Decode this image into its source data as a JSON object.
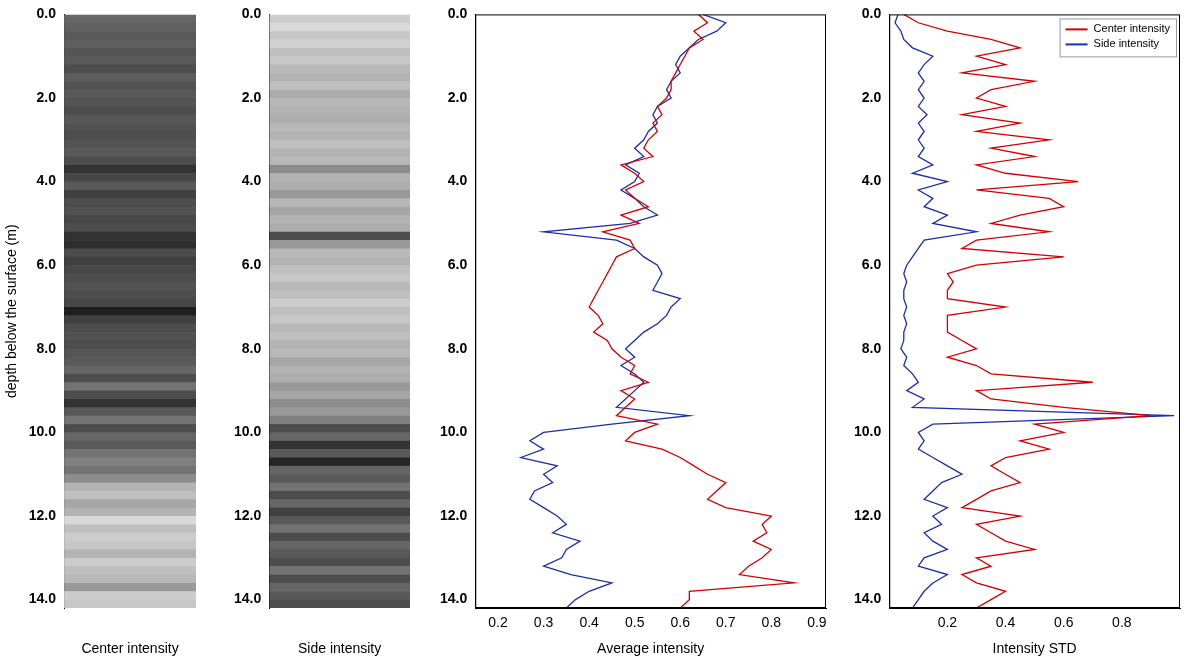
{
  "chart_data": [
    {
      "type": "heatmap",
      "x_label": "Center intensity",
      "y_label": "depth below the surface (m)",
      "tick_labels": "y",
      "grid": false,
      "ylim": [
        0,
        14.2
      ],
      "yticks": [
        {
          "value": 0,
          "label": "0.0"
        },
        {
          "value": 2,
          "label": "2.0"
        },
        {
          "value": 4,
          "label": "4.0"
        },
        {
          "value": 6,
          "label": "6.0"
        },
        {
          "value": 8,
          "label": "8.0"
        },
        {
          "value": 10,
          "label": "10.0"
        },
        {
          "value": 12,
          "label": "12.0"
        },
        {
          "value": 14,
          "label": "14.0"
        }
      ],
      "y": [
        0,
        0.2,
        0.4,
        0.6,
        0.8,
        1,
        1.2,
        1.4,
        1.6,
        1.8,
        2,
        2.2,
        2.4,
        2.6,
        2.8,
        3,
        3.2,
        3.4,
        3.6,
        3.8,
        4,
        4.2,
        4.4,
        4.6,
        4.8,
        5,
        5.2,
        5.4,
        5.6,
        5.8,
        6,
        6.2,
        6.4,
        6.6,
        6.8,
        7,
        7.2,
        7.4,
        7.6,
        7.8,
        8,
        8.2,
        8.4,
        8.6,
        8.8,
        9,
        9.2,
        9.4,
        9.6,
        9.8,
        10,
        10.2,
        10.4,
        10.6,
        10.8,
        11,
        11.2,
        11.4,
        11.6,
        11.8,
        12,
        12.2,
        12.4,
        12.6,
        12.8,
        13,
        13.2,
        13.4,
        13.6,
        13.8,
        14
      ],
      "values": [
        0.4,
        0.38,
        0.35,
        0.37,
        0.33,
        0.35,
        0.3,
        0.36,
        0.32,
        0.35,
        0.33,
        0.3,
        0.34,
        0.32,
        0.3,
        0.33,
        0.35,
        0.3,
        0.2,
        0.28,
        0.35,
        0.25,
        0.3,
        0.32,
        0.28,
        0.3,
        0.2,
        0.18,
        0.3,
        0.25,
        0.28,
        0.3,
        0.32,
        0.3,
        0.28,
        0.12,
        0.25,
        0.3,
        0.32,
        0.3,
        0.33,
        0.35,
        0.4,
        0.3,
        0.45,
        0.3,
        0.2,
        0.35,
        0.45,
        0.3,
        0.4,
        0.35,
        0.45,
        0.5,
        0.45,
        0.55,
        0.7,
        0.75,
        0.65,
        0.7,
        0.85,
        0.75,
        0.8,
        0.78,
        0.7,
        0.8,
        0.75,
        0.72,
        0.6,
        0.8,
        0.78
      ]
    },
    {
      "type": "heatmap",
      "x_label": "Side intensity",
      "tick_labels": "y",
      "grid": false,
      "ylim": [
        0,
        14.2
      ],
      "yticks": [
        {
          "value": 0,
          "label": "0.0"
        },
        {
          "value": 2,
          "label": "2.0"
        },
        {
          "value": 4,
          "label": "4.0"
        },
        {
          "value": 6,
          "label": "6.0"
        },
        {
          "value": 8,
          "label": "8.0"
        },
        {
          "value": 10,
          "label": "10.0"
        },
        {
          "value": 12,
          "label": "12.0"
        },
        {
          "value": 14,
          "label": "14.0"
        }
      ],
      "y": [
        0,
        0.2,
        0.4,
        0.6,
        0.8,
        1,
        1.2,
        1.4,
        1.6,
        1.8,
        2,
        2.2,
        2.4,
        2.6,
        2.8,
        3,
        3.2,
        3.4,
        3.6,
        3.8,
        4,
        4.2,
        4.4,
        4.6,
        4.8,
        5,
        5.2,
        5.4,
        5.6,
        5.8,
        6,
        6.2,
        6.4,
        6.6,
        6.8,
        7,
        7.2,
        7.4,
        7.6,
        7.8,
        8,
        8.2,
        8.4,
        8.6,
        8.8,
        9,
        9.2,
        9.4,
        9.6,
        9.8,
        10,
        10.2,
        10.4,
        10.6,
        10.8,
        11,
        11.2,
        11.4,
        11.6,
        11.8,
        12,
        12.2,
        12.4,
        12.6,
        12.8,
        13,
        13.2,
        13.4,
        13.6,
        13.8,
        14
      ],
      "values": [
        0.8,
        0.85,
        0.78,
        0.82,
        0.75,
        0.78,
        0.72,
        0.7,
        0.75,
        0.68,
        0.72,
        0.7,
        0.68,
        0.72,
        0.7,
        0.75,
        0.7,
        0.72,
        0.55,
        0.7,
        0.68,
        0.6,
        0.72,
        0.65,
        0.7,
        0.68,
        0.3,
        0.6,
        0.72,
        0.7,
        0.75,
        0.78,
        0.72,
        0.75,
        0.8,
        0.75,
        0.78,
        0.72,
        0.75,
        0.7,
        0.72,
        0.65,
        0.7,
        0.68,
        0.6,
        0.65,
        0.55,
        0.6,
        0.5,
        0.3,
        0.4,
        0.2,
        0.35,
        0.15,
        0.4,
        0.35,
        0.45,
        0.3,
        0.4,
        0.25,
        0.35,
        0.45,
        0.3,
        0.4,
        0.35,
        0.3,
        0.45,
        0.3,
        0.4,
        0.35,
        0.3
      ]
    },
    {
      "type": "line",
      "x_label": "Average intensity",
      "grid": false,
      "xlim": [
        0.15,
        0.92
      ],
      "xticks": [
        0.2,
        0.3,
        0.4,
        0.5,
        0.6,
        0.7,
        0.8,
        0.9
      ],
      "ylim": [
        0,
        14.2
      ],
      "yticks": [
        {
          "value": 0,
          "label": "0.0"
        },
        {
          "value": 2,
          "label": "2.0"
        },
        {
          "value": 4,
          "label": "4.0"
        },
        {
          "value": 6,
          "label": "6.0"
        },
        {
          "value": 8,
          "label": "8.0"
        },
        {
          "value": 10,
          "label": "10.0"
        },
        {
          "value": 12,
          "label": "12.0"
        },
        {
          "value": 14,
          "label": "14.0"
        }
      ],
      "y": [
        0,
        0.2,
        0.4,
        0.6,
        0.8,
        1,
        1.2,
        1.4,
        1.6,
        1.8,
        2,
        2.2,
        2.4,
        2.6,
        2.8,
        3,
        3.2,
        3.4,
        3.6,
        3.8,
        4,
        4.2,
        4.4,
        4.6,
        4.8,
        5,
        5.2,
        5.4,
        5.6,
        5.8,
        6,
        6.2,
        6.4,
        6.6,
        6.8,
        7,
        7.2,
        7.4,
        7.6,
        7.8,
        8,
        8.2,
        8.4,
        8.6,
        8.8,
        9,
        9.2,
        9.4,
        9.6,
        9.8,
        10,
        10.2,
        10.4,
        10.6,
        10.8,
        11,
        11.2,
        11.4,
        11.6,
        11.8,
        12,
        12.2,
        12.4,
        12.6,
        12.8,
        13,
        13.2,
        13.4,
        13.6,
        13.8,
        14,
        14.2
      ],
      "series": [
        {
          "color": "#d40000",
          "values": [
            0.64,
            0.66,
            0.63,
            0.65,
            0.62,
            0.61,
            0.6,
            0.59,
            0.58,
            0.58,
            0.57,
            0.55,
            0.56,
            0.54,
            0.55,
            0.53,
            0.52,
            0.54,
            0.47,
            0.5,
            0.52,
            0.48,
            0.5,
            0.53,
            0.47,
            0.51,
            0.43,
            0.49,
            0.5,
            0.46,
            0.45,
            0.44,
            0.43,
            0.42,
            0.41,
            0.4,
            0.42,
            0.43,
            0.41,
            0.44,
            0.45,
            0.47,
            0.5,
            0.49,
            0.53,
            0.47,
            0.5,
            0.48,
            0.46,
            0.55,
            0.5,
            0.48,
            0.56,
            0.6,
            0.63,
            0.66,
            0.7,
            0.68,
            0.66,
            0.7,
            0.8,
            0.78,
            0.79,
            0.76,
            0.8,
            0.78,
            0.75,
            0.73,
            0.85,
            0.62,
            0.62,
            0.6
          ]
        },
        {
          "color": "#1a2fa8",
          "values": [
            0.65,
            0.7,
            0.68,
            0.64,
            0.62,
            0.6,
            0.59,
            0.6,
            0.58,
            0.57,
            0.58,
            0.55,
            0.54,
            0.55,
            0.53,
            0.52,
            0.5,
            0.52,
            0.48,
            0.51,
            0.5,
            0.47,
            0.5,
            0.52,
            0.55,
            0.49,
            0.3,
            0.46,
            0.5,
            0.52,
            0.55,
            0.56,
            0.55,
            0.54,
            0.6,
            0.58,
            0.57,
            0.55,
            0.52,
            0.5,
            0.48,
            0.5,
            0.47,
            0.5,
            0.52,
            0.5,
            0.48,
            0.46,
            0.62,
            0.45,
            0.3,
            0.27,
            0.3,
            0.25,
            0.33,
            0.3,
            0.32,
            0.28,
            0.27,
            0.3,
            0.33,
            0.35,
            0.32,
            0.38,
            0.35,
            0.34,
            0.3,
            0.36,
            0.45,
            0.4,
            0.37,
            0.35
          ]
        }
      ]
    },
    {
      "type": "line",
      "x_label": "Intensity STD",
      "grid": false,
      "legend": "top-right",
      "xlim": [
        0,
        1
      ],
      "xticks": [
        0.2,
        0.4,
        0.6,
        0.8
      ],
      "ylim": [
        0,
        14.2
      ],
      "yticks": [
        {
          "value": 0,
          "label": "0.0"
        },
        {
          "value": 2,
          "label": "2.0"
        },
        {
          "value": 4,
          "label": "4.0"
        },
        {
          "value": 6,
          "label": "6.0"
        },
        {
          "value": 8,
          "label": "8.0"
        },
        {
          "value": 10,
          "label": "10.0"
        },
        {
          "value": 12,
          "label": "12.0"
        },
        {
          "value": 14,
          "label": "14.0"
        }
      ],
      "y": [
        0,
        0.2,
        0.4,
        0.6,
        0.8,
        1,
        1.2,
        1.4,
        1.6,
        1.8,
        2,
        2.2,
        2.4,
        2.6,
        2.8,
        3,
        3.2,
        3.4,
        3.6,
        3.8,
        4,
        4.2,
        4.4,
        4.6,
        4.8,
        5,
        5.2,
        5.4,
        5.6,
        5.8,
        6,
        6.2,
        6.4,
        6.6,
        6.8,
        7,
        7.2,
        7.4,
        7.6,
        7.8,
        8,
        8.2,
        8.4,
        8.6,
        8.8,
        9,
        9.2,
        9.4,
        9.6,
        9.8,
        10,
        10.2,
        10.4,
        10.6,
        10.8,
        11,
        11.2,
        11.4,
        11.6,
        11.8,
        12,
        12.2,
        12.4,
        12.6,
        12.8,
        13,
        13.2,
        13.4,
        13.6,
        13.8,
        14,
        14.2
      ],
      "series": [
        {
          "name": "Center intensity",
          "color": "#d40000",
          "values": [
            0.05,
            0.1,
            0.2,
            0.35,
            0.45,
            0.3,
            0.4,
            0.25,
            0.5,
            0.35,
            0.3,
            0.4,
            0.25,
            0.45,
            0.3,
            0.55,
            0.35,
            0.5,
            0.3,
            0.4,
            0.65,
            0.3,
            0.55,
            0.6,
            0.45,
            0.35,
            0.55,
            0.3,
            0.25,
            0.6,
            0.3,
            0.2,
            0.22,
            0.2,
            0.2,
            0.4,
            0.2,
            0.2,
            0.2,
            0.25,
            0.3,
            0.2,
            0.3,
            0.35,
            0.7,
            0.3,
            0.35,
            0.6,
            0.9,
            0.5,
            0.6,
            0.45,
            0.55,
            0.4,
            0.35,
            0.4,
            0.45,
            0.35,
            0.3,
            0.25,
            0.45,
            0.3,
            0.35,
            0.4,
            0.5,
            0.3,
            0.35,
            0.25,
            0.3,
            0.4,
            0.35,
            0.3
          ]
        },
        {
          "name": "Side intensity",
          "color": "#1a2fa8",
          "values": [
            0.03,
            0.02,
            0.04,
            0.05,
            0.08,
            0.15,
            0.12,
            0.1,
            0.12,
            0.1,
            0.12,
            0.1,
            0.13,
            0.1,
            0.12,
            0.1,
            0.12,
            0.1,
            0.15,
            0.08,
            0.2,
            0.1,
            0.15,
            0.12,
            0.2,
            0.15,
            0.3,
            0.12,
            0.1,
            0.08,
            0.06,
            0.05,
            0.06,
            0.05,
            0.05,
            0.06,
            0.05,
            0.06,
            0.05,
            0.05,
            0.04,
            0.06,
            0.05,
            0.08,
            0.1,
            0.06,
            0.12,
            0.08,
            0.98,
            0.15,
            0.1,
            0.12,
            0.1,
            0.15,
            0.2,
            0.25,
            0.18,
            0.15,
            0.12,
            0.2,
            0.15,
            0.18,
            0.12,
            0.15,
            0.2,
            0.12,
            0.1,
            0.2,
            0.15,
            0.12,
            0.1,
            0.08
          ]
        }
      ]
    }
  ]
}
